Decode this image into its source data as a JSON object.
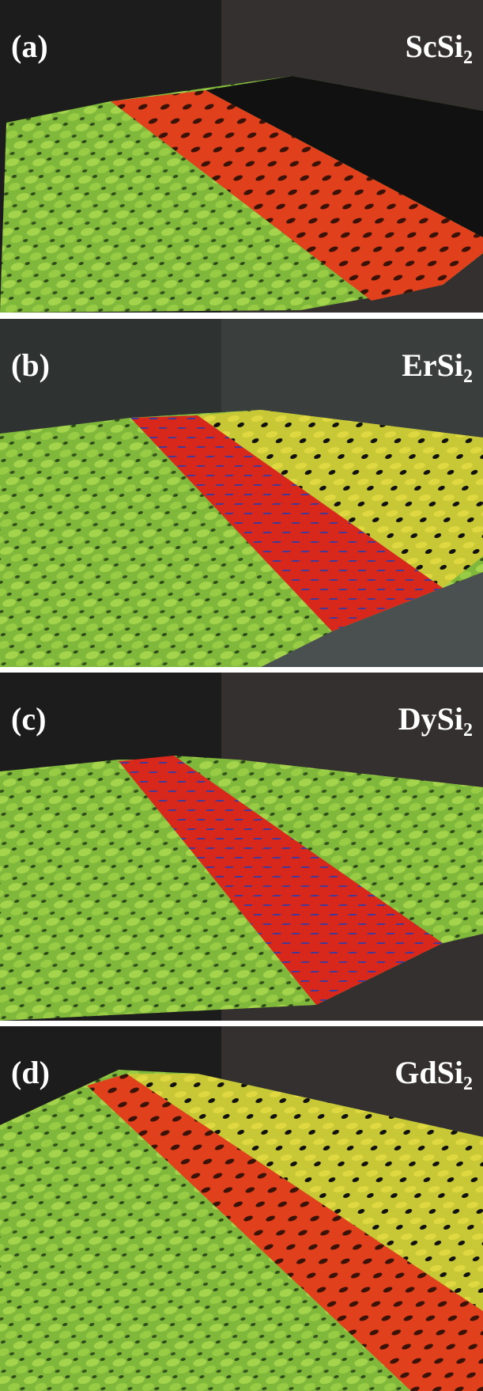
{
  "panels": [
    {
      "label": "(a)",
      "material": "ScSi",
      "subscript": "2"
    },
    {
      "label": "(b)",
      "material": "ErSi",
      "subscript": "2"
    },
    {
      "label": "(c)",
      "material": "DySi",
      "subscript": "2"
    },
    {
      "label": "(d)",
      "material": "GdSi",
      "subscript": "2"
    }
  ]
}
